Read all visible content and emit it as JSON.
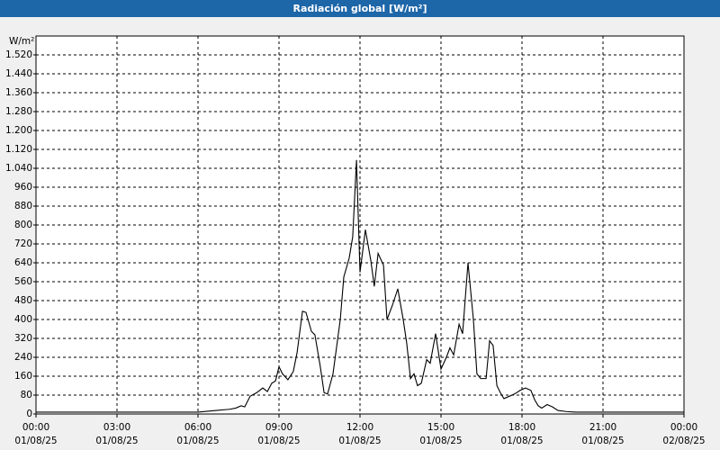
{
  "chart_data": {
    "type": "line",
    "title": "Radiación global [W/m²]",
    "y_label": "W/m²",
    "x": [
      0,
      6,
      6.67,
      7.17,
      7.4,
      7.6,
      7.73,
      7.93,
      8.17,
      8.4,
      8.57,
      8.73,
      8.87,
      9,
      9.13,
      9.33,
      9.53,
      9.67,
      9.87,
      10,
      10.2,
      10.33,
      10.53,
      10.67,
      10.8,
      11,
      11.27,
      11.4,
      11.6,
      11.73,
      11.87,
      12,
      12.2,
      12.4,
      12.53,
      12.67,
      12.87,
      13,
      13.2,
      13.4,
      13.6,
      13.73,
      13.87,
      14,
      14.13,
      14.27,
      14.47,
      14.6,
      14.8,
      15,
      15.2,
      15.33,
      15.47,
      15.67,
      15.8,
      16,
      16.2,
      16.33,
      16.47,
      16.67,
      16.8,
      16.93,
      17.07,
      17.2,
      17.33,
      17.53,
      17.73,
      17.93,
      18.13,
      18.33,
      18.47,
      18.6,
      18.73,
      18.93,
      19.13,
      19.33,
      19.67,
      20,
      24
    ],
    "series": [
      {
        "name": "Radiación global",
        "color": "#000000",
        "values": [
          8,
          8,
          15,
          20,
          25,
          35,
          30,
          75,
          90,
          110,
          95,
          130,
          140,
          200,
          170,
          145,
          180,
          260,
          435,
          430,
          350,
          335,
          200,
          90,
          85,
          170,
          400,
          580,
          660,
          750,
          1075,
          600,
          780,
          650,
          540,
          680,
          630,
          400,
          460,
          530,
          400,
          300,
          150,
          170,
          120,
          130,
          230,
          215,
          340,
          190,
          240,
          280,
          250,
          380,
          340,
          640,
          400,
          170,
          150,
          150,
          310,
          290,
          120,
          90,
          65,
          75,
          85,
          100,
          110,
          100,
          60,
          35,
          25,
          40,
          30,
          15,
          10,
          8,
          8
        ]
      }
    ],
    "xlim": [
      0,
      24
    ],
    "ylim": [
      0,
      1600
    ],
    "xticks": [
      {
        "value": 0,
        "label": [
          "00:00",
          "01/08/25"
        ]
      },
      {
        "value": 3,
        "label": [
          "03:00",
          "01/08/25"
        ]
      },
      {
        "value": 6,
        "label": [
          "06:00",
          "01/08/25"
        ]
      },
      {
        "value": 9,
        "label": [
          "09:00",
          "01/08/25"
        ]
      },
      {
        "value": 12,
        "label": [
          "12:00",
          "01/08/25"
        ]
      },
      {
        "value": 15,
        "label": [
          "15:00",
          "01/08/25"
        ]
      },
      {
        "value": 18,
        "label": [
          "18:00",
          "01/08/25"
        ]
      },
      {
        "value": 21,
        "label": [
          "21:00",
          "01/08/25"
        ]
      },
      {
        "value": 24,
        "label": [
          "00:00",
          "02/08/25"
        ]
      }
    ],
    "yticks": [
      0,
      80,
      160,
      240,
      320,
      400,
      480,
      560,
      640,
      720,
      800,
      880,
      960,
      {
        "value": 1040,
        "label": "1.040"
      },
      {
        "value": 1120,
        "label": "1.120"
      },
      {
        "value": 1200,
        "label": "1.200"
      },
      {
        "value": 1280,
        "label": "1.280"
      },
      {
        "value": 1360,
        "label": "1.360"
      },
      {
        "value": 1440,
        "label": "1.440"
      },
      {
        "value": 1520,
        "label": "1.520"
      }
    ],
    "grid": true
  }
}
